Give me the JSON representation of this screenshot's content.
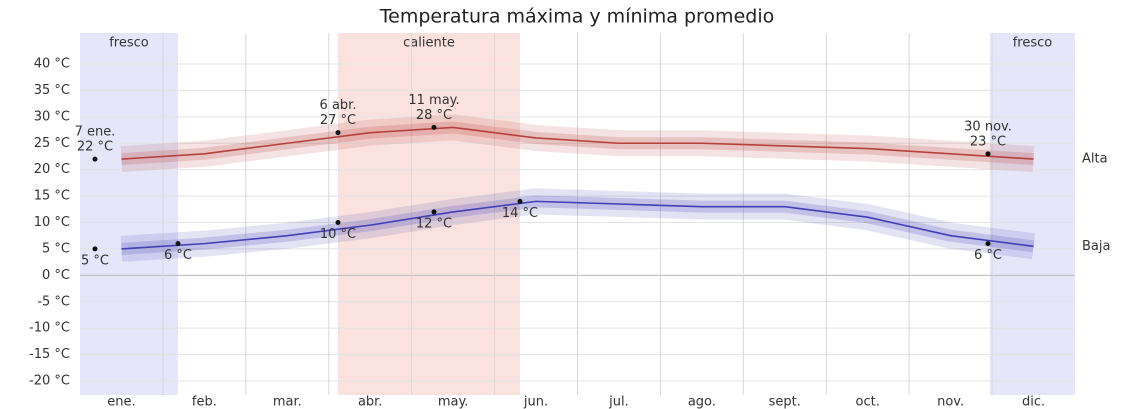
{
  "chart_data": {
    "type": "line",
    "title": "Temperatura máxima y mínima promedio",
    "categories": [
      "ene.",
      "feb.",
      "mar.",
      "abr.",
      "may.",
      "jun.",
      "jul.",
      "ago.",
      "sept.",
      "oct.",
      "nov.",
      "dic."
    ],
    "series": [
      {
        "name": "Alta",
        "color": "#b8403a",
        "values": [
          22,
          23,
          25,
          27,
          28,
          26,
          25,
          25,
          24.5,
          24,
          23,
          22
        ]
      },
      {
        "name": "Baja",
        "color": "#4040b8",
        "values": [
          5,
          6,
          7.5,
          9.5,
          12,
          14,
          13.5,
          13,
          13,
          11,
          7.5,
          5.5
        ]
      }
    ],
    "ylim": [
      -20,
      40
    ],
    "yticks": [
      {
        "value": 40,
        "label": "40 °C"
      },
      {
        "value": 35,
        "label": "35 °C"
      },
      {
        "value": 30,
        "label": "30 °C"
      },
      {
        "value": 25,
        "label": "25 °C"
      },
      {
        "value": 20,
        "label": "20 °C"
      },
      {
        "value": 15,
        "label": "15 °C"
      },
      {
        "value": 10,
        "label": "10 °C"
      },
      {
        "value": 5,
        "label": "5 °C"
      },
      {
        "value": 0,
        "label": "0 °C"
      },
      {
        "value": -5,
        "label": "-5 °C"
      },
      {
        "value": -10,
        "label": "-10 °C"
      },
      {
        "value": -15,
        "label": "-15 °C"
      },
      {
        "value": -20,
        "label": "-20 °C"
      }
    ],
    "grid": true,
    "seasons": [
      {
        "label": "fresco",
        "color": "#e6e6fa"
      },
      {
        "label": "caliente",
        "color": "#fbe2de"
      },
      {
        "label": "fresco",
        "color": "#e6e6fa"
      }
    ],
    "annotations": [
      {
        "date": "7 ene.",
        "value": 22,
        "value_label": "22 °C"
      },
      {
        "date": "6 abr.",
        "value": 27,
        "value_label": "27 °C"
      },
      {
        "date": "11 may.",
        "value": 28,
        "value_label": "28 °C"
      },
      {
        "date": "30 nov.",
        "value": 23,
        "value_label": "23 °C"
      },
      {
        "value": 5,
        "value_label": "5 °C"
      },
      {
        "value": 6,
        "value_label": "6 °C"
      },
      {
        "value": 10,
        "value_label": "10 °C"
      },
      {
        "value": 12,
        "value_label": "12 °C"
      },
      {
        "value": 14,
        "value_label": "14 °C"
      },
      {
        "value": 6,
        "value_label": "6 °C"
      }
    ]
  }
}
